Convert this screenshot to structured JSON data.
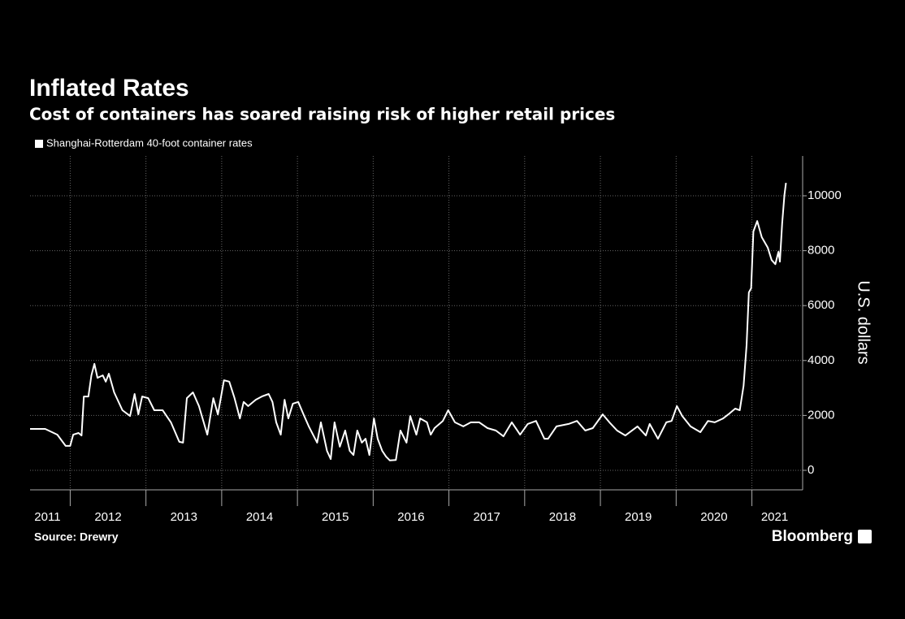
{
  "chart_data": {
    "type": "line",
    "title": "Inflated Rates",
    "subtitle": "Cost of containers has soared raising risk of higher retail prices",
    "y_label": "U.S. dollars",
    "source": "Source: Drewry",
    "brand": "Bloomberg",
    "grid": true,
    "xlim": [
      2011.47,
      2021.67
    ],
    "ylim": [
      -710,
      11450
    ],
    "yticks": [
      0,
      2000,
      4000,
      6000,
      8000,
      10000
    ],
    "xgrid": [
      2012,
      2013,
      2014,
      2015,
      2016,
      2017,
      2018,
      2019,
      2020,
      2021
    ],
    "xticks": [
      {
        "value": 2011.7,
        "label": "2011"
      },
      {
        "value": 2012.5,
        "label": "2012"
      },
      {
        "value": 2013.5,
        "label": "2013"
      },
      {
        "value": 2014.5,
        "label": "2014"
      },
      {
        "value": 2015.5,
        "label": "2015"
      },
      {
        "value": 2016.5,
        "label": "2016"
      },
      {
        "value": 2017.5,
        "label": "2017"
      },
      {
        "value": 2018.5,
        "label": "2018"
      },
      {
        "value": 2019.5,
        "label": "2019"
      },
      {
        "value": 2020.5,
        "label": "2020"
      },
      {
        "value": 2021.3,
        "label": "2021"
      }
    ],
    "x": [
      2011.47,
      2011.67,
      2011.83,
      2011.94,
      2012.0,
      2012.04,
      2012.11,
      2012.15,
      2012.18,
      2012.24,
      2012.28,
      2012.32,
      2012.36,
      2012.43,
      2012.47,
      2012.51,
      2012.58,
      2012.69,
      2012.79,
      2012.85,
      2012.9,
      2012.95,
      2013.03,
      2013.11,
      2013.22,
      2013.33,
      2013.44,
      2013.49,
      2013.54,
      2013.62,
      2013.7,
      2013.81,
      2013.89,
      2013.95,
      2014.03,
      2014.1,
      2014.17,
      2014.24,
      2014.29,
      2014.35,
      2014.45,
      2014.53,
      2014.62,
      2014.67,
      2014.72,
      2014.78,
      2014.83,
      2014.88,
      2014.94,
      2015.01,
      2015.08,
      2015.15,
      2015.26,
      2015.31,
      2015.39,
      2015.44,
      2015.49,
      2015.56,
      2015.63,
      2015.69,
      2015.74,
      2015.79,
      2015.85,
      2015.9,
      2015.95,
      2016.01,
      2016.06,
      2016.12,
      2016.17,
      2016.22,
      2016.3,
      2016.36,
      2016.44,
      2016.49,
      2016.57,
      2016.62,
      2016.71,
      2016.76,
      2016.81,
      2016.92,
      2016.99,
      2017.08,
      2017.19,
      2017.29,
      2017.4,
      2017.51,
      2017.62,
      2017.72,
      2017.83,
      2017.94,
      2018.04,
      2018.15,
      2018.26,
      2018.31,
      2018.42,
      2018.58,
      2018.69,
      2018.8,
      2018.9,
      2019.03,
      2019.12,
      2019.22,
      2019.33,
      2019.49,
      2019.6,
      2019.65,
      2019.76,
      2019.87,
      2019.94,
      2020.01,
      2020.08,
      2020.19,
      2020.32,
      2020.42,
      2020.51,
      2020.62,
      2020.69,
      2020.78,
      2020.84,
      2020.89,
      2020.93,
      2020.96,
      2020.99,
      2021.02,
      2021.07,
      2021.13,
      2021.21,
      2021.26,
      2021.31,
      2021.35,
      2021.37,
      2021.4,
      2021.43,
      2021.45
    ],
    "series": [
      {
        "name": "Shanghai-Rotterdam 40-foot container rates",
        "color": "#ffffff",
        "values": [
          1510,
          1510,
          1300,
          890,
          890,
          1300,
          1360,
          1270,
          2690,
          2690,
          3460,
          3880,
          3370,
          3460,
          3230,
          3520,
          2840,
          2190,
          1980,
          2780,
          2040,
          2690,
          2630,
          2190,
          2190,
          1750,
          1040,
          1010,
          2630,
          2840,
          2340,
          1300,
          2630,
          2040,
          3280,
          3230,
          2630,
          1890,
          2490,
          2340,
          2570,
          2690,
          2780,
          2490,
          1750,
          1300,
          2570,
          1890,
          2430,
          2490,
          2040,
          1600,
          1010,
          1750,
          710,
          410,
          1750,
          860,
          1450,
          710,
          560,
          1450,
          1010,
          1150,
          560,
          1890,
          1150,
          710,
          500,
          360,
          380,
          1450,
          1010,
          1980,
          1300,
          1890,
          1750,
          1300,
          1540,
          1800,
          2190,
          1750,
          1600,
          1750,
          1750,
          1540,
          1450,
          1240,
          1750,
          1300,
          1690,
          1800,
          1150,
          1150,
          1600,
          1690,
          1800,
          1450,
          1540,
          2040,
          1750,
          1450,
          1270,
          1600,
          1270,
          1690,
          1150,
          1750,
          1800,
          2340,
          1980,
          1600,
          1390,
          1800,
          1750,
          1890,
          2040,
          2250,
          2190,
          3080,
          4560,
          6480,
          6630,
          8700,
          9080,
          8490,
          8110,
          7660,
          7510,
          7960,
          7600,
          9000,
          10030,
          10470
        ]
      }
    ]
  }
}
